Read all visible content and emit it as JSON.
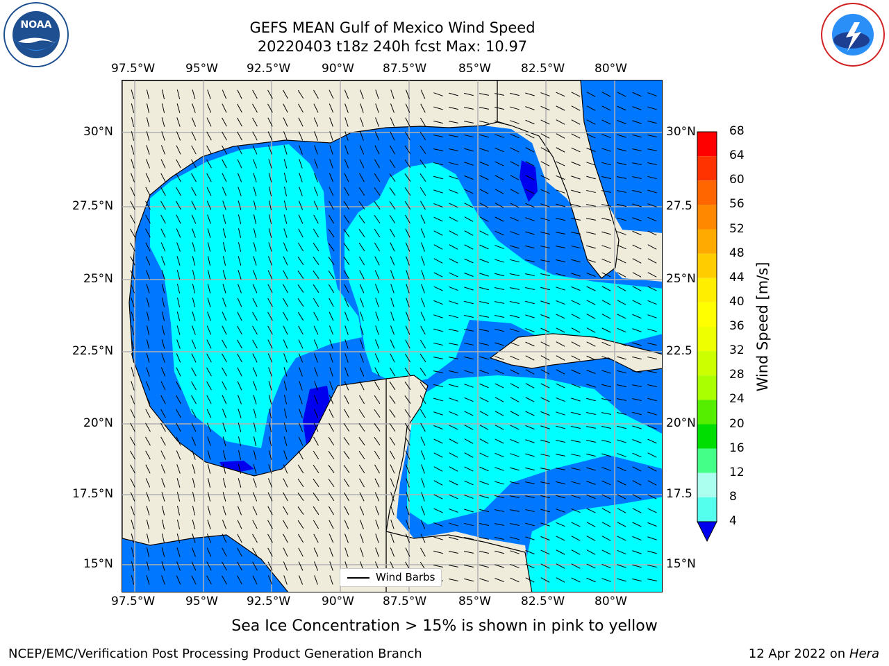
{
  "title": {
    "line1": "GEFS MEAN Gulf of Mexico Wind Speed",
    "line2": "20220403 t18z 240h fcst   Max: 10.97"
  },
  "lon_ticks": [
    "97.5°W",
    "95°W",
    "92.5°W",
    "90°W",
    "87.5°W",
    "85°W",
    "82.5°W",
    "80°W"
  ],
  "lat_ticks_left": [
    "30°N",
    "27.5°N",
    "25°N",
    "22.5°N",
    "20°N",
    "17.5°N",
    "15°N"
  ],
  "lat_ticks_right": [
    "30°N",
    "27.5",
    "25°N",
    "22.5",
    "20°N",
    "17.5",
    "15°N"
  ],
  "legend": {
    "wind_barbs": "Wind Barbs"
  },
  "colorbar": {
    "title": "Wind Speed [m/s]",
    "levels": [
      "68",
      "64",
      "60",
      "56",
      "52",
      "48",
      "44",
      "40",
      "36",
      "32",
      "28",
      "24",
      "20",
      "16",
      "12",
      "8",
      "4"
    ],
    "colors": [
      "#ff0000",
      "#ff3300",
      "#ff6600",
      "#ff8800",
      "#ffaa00",
      "#ffcc00",
      "#ffee00",
      "#ffff00",
      "#eeff00",
      "#ccff00",
      "#aaff00",
      "#55ee00",
      "#00dd00",
      "#44ff88",
      "#aaffee",
      "#55ffee",
      "#00ffff",
      "#0077ff",
      "#0000ee"
    ]
  },
  "colors": {
    "land": "#efecdc",
    "wind_4_8": "#0077ff",
    "wind_8_12": "#00ffff",
    "wind_below_4": "#0000ee"
  },
  "footer_note": "Sea Ice Concentration > 15% is shown in pink to yellow",
  "credit_left": "NCEP/EMC/Verification Post Processing Product Generation Branch",
  "credit_date": "12 Apr 2022 on",
  "credit_machine": "Hera",
  "logos": {
    "left": "NOAA",
    "right": "NATIONAL WEATHER SERVICE"
  }
}
